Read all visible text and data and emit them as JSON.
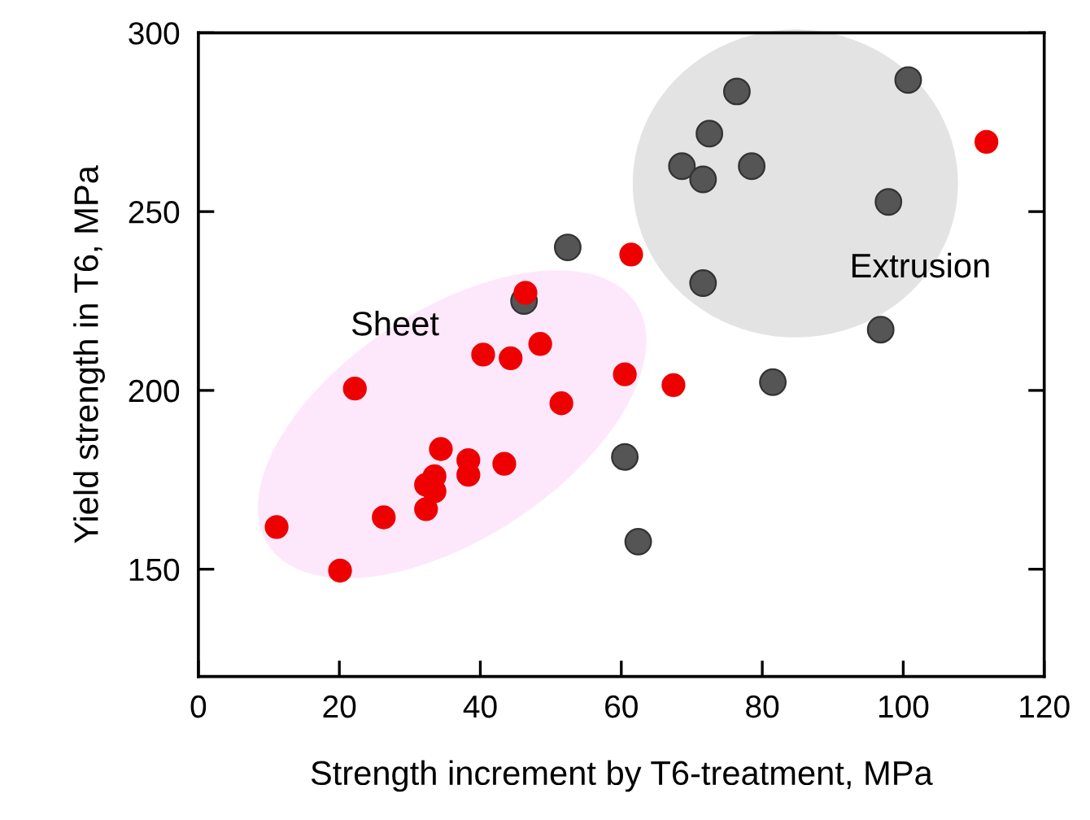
{
  "chart_data": {
    "type": "scatter",
    "xlabel": "Strength increment by T6-treatment, MPa",
    "ylabel": "Yield strength in T6, MPa",
    "annotations": [
      "Sheet",
      "Extrusion"
    ],
    "xlim": [
      0,
      120
    ],
    "xticks": [
      0,
      20,
      40,
      60,
      80,
      100,
      120
    ],
    "ylim": [
      120,
      300
    ],
    "yticks": [
      150,
      200,
      250,
      300
    ],
    "grid": false,
    "legend": false,
    "marker": "circle",
    "series": [
      {
        "color": "#555555",
        "x": [
          52.4,
          46.2,
          76.4,
          100.7,
          72.5,
          68.6,
          71.6,
          78.5,
          97.9,
          71.6,
          96.8,
          81.5,
          60.5,
          62.4
        ],
        "values": [
          240,
          225,
          283.6,
          286.8,
          271.8,
          262.7,
          259,
          262.7,
          252.7,
          230,
          217,
          202.3,
          181.4,
          157.7
        ]
      },
      {
        "color": "#ee0000",
        "x": [
          111.8,
          61.4,
          60.5,
          null,
          67.4,
          46.4,
          40.4,
          44.3,
          48.5,
          22.2,
          51.5,
          34.4,
          38.3,
          38.3,
          43.4,
          33.5,
          32.3,
          33.5,
          32.3,
          26.3,
          11.1,
          20.1
        ],
        "values": [
          269.5,
          238,
          204.5,
          null,
          201.5,
          227.3,
          210,
          209,
          213,
          200.5,
          196.4,
          183.6,
          180.5,
          176.4,
          179.5,
          176,
          173.6,
          171.8,
          166.8,
          164.5,
          161.8,
          149.6
        ]
      }
    ]
  }
}
